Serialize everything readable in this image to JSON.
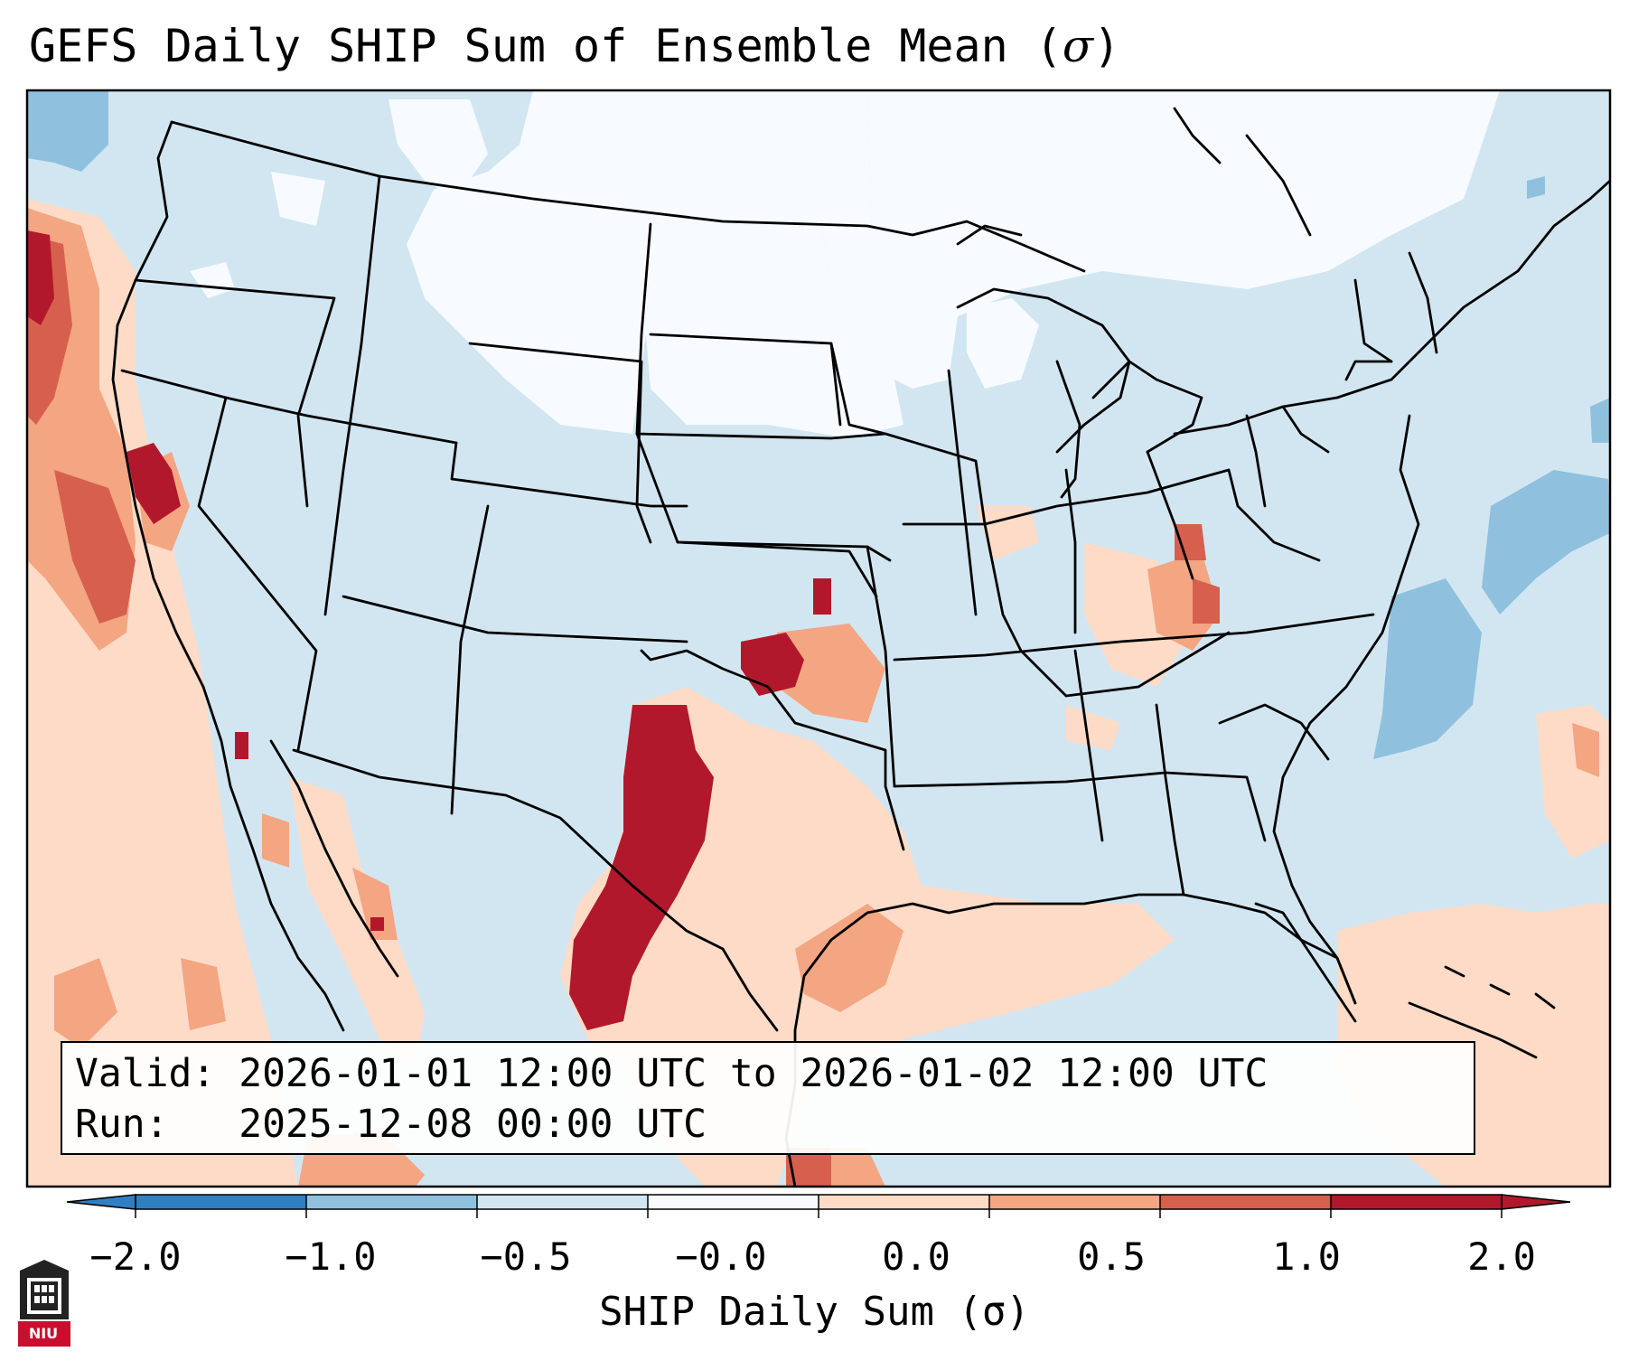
{
  "title": {
    "text": "GEFS Daily SHIP Sum of Ensemble Mean (",
    "symbol": "σ",
    "close": ")"
  },
  "info": {
    "valid_line": "Valid: 2026-01-01 12:00 UTC to 2026-01-02 12:00 UTC",
    "run_line": "Run:   2025-12-08 00:00 UTC"
  },
  "colorbar": {
    "ticks": [
      "−2.0",
      "−1.0",
      "−0.5",
      "−0.0",
      "0.0",
      "0.5",
      "1.0",
      "2.0"
    ],
    "label": "SHIP Daily Sum (σ)",
    "colors": [
      "#2f7fc1",
      "#8fc1de",
      "#d2e6f1",
      "#f7fbff",
      "#fddbc7",
      "#f4a582",
      "#d6604d",
      "#b2182b"
    ]
  },
  "logo": {
    "text": "NIU",
    "color": "#c8102e"
  }
}
